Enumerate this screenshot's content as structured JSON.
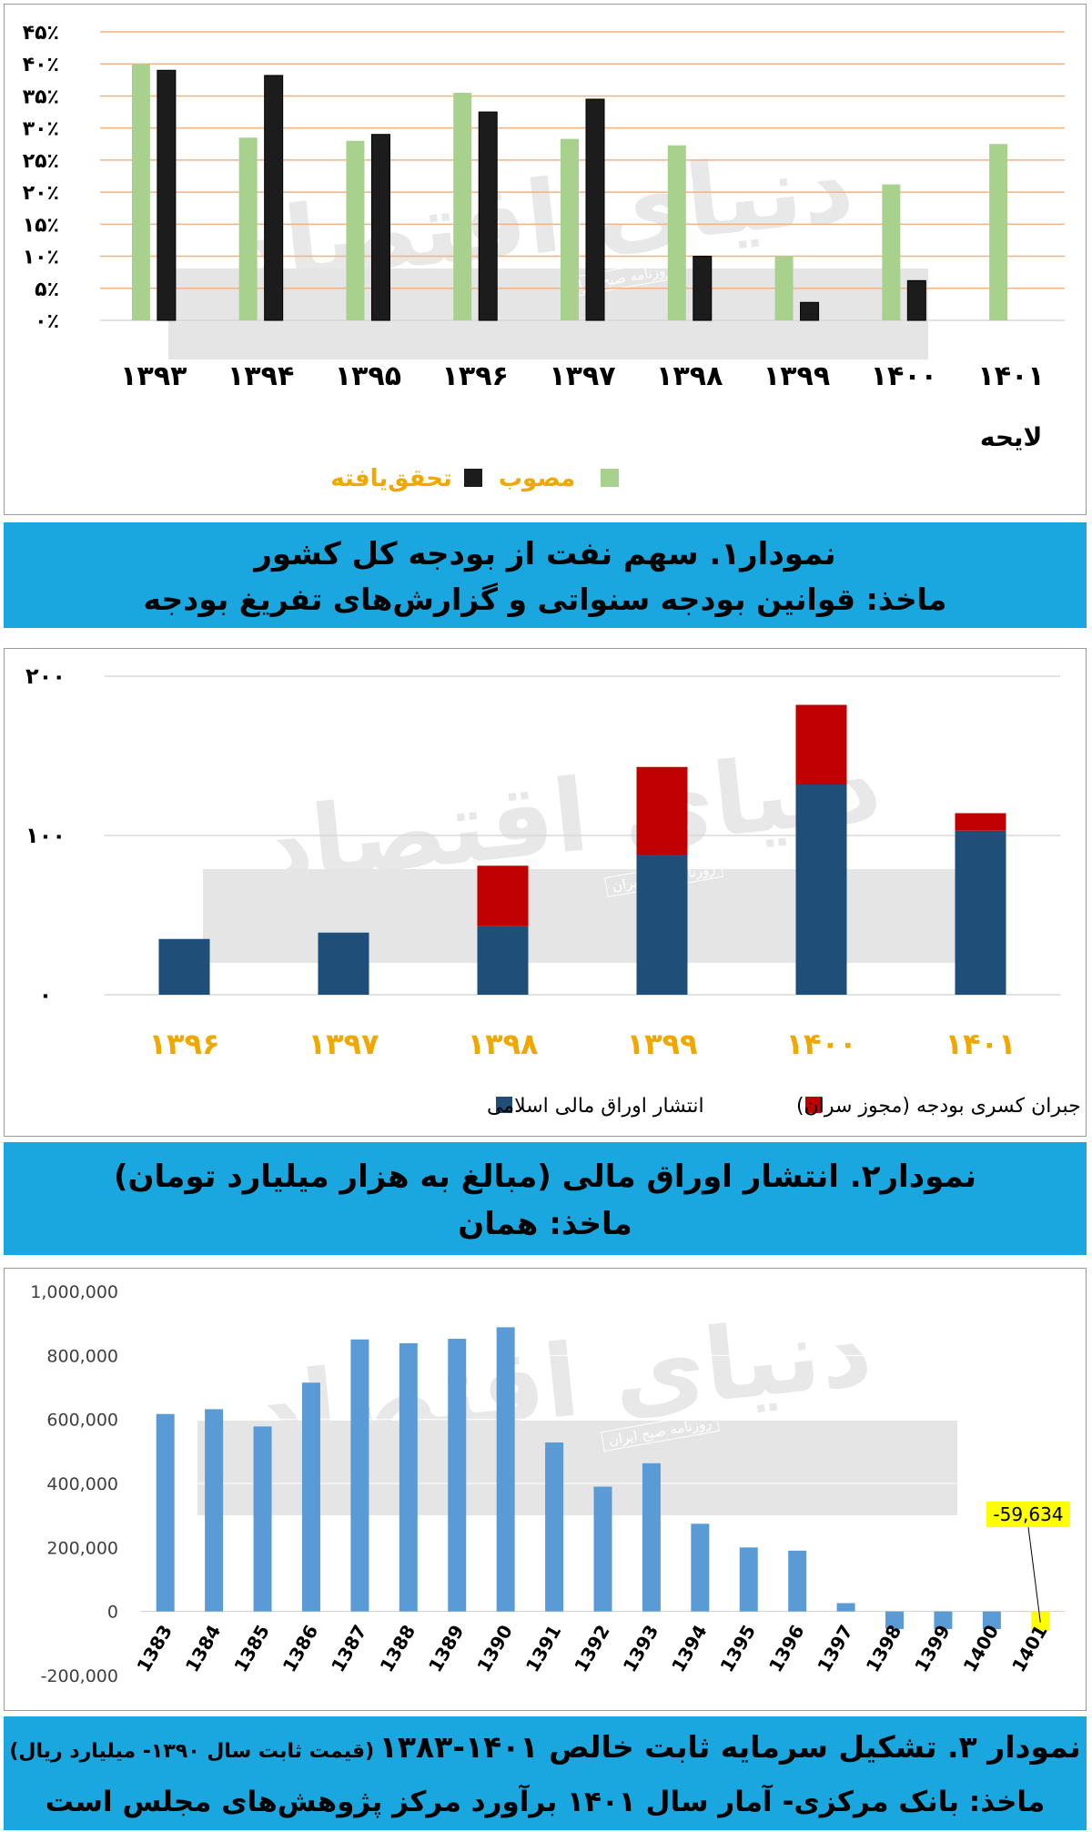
{
  "watermark": {
    "main": "دنیای اقتصاد",
    "small": "روزنامه صبح ایران"
  },
  "chart_data": [
    {
      "type": "bar",
      "categories": [
        "۱۳۹۳",
        "۱۳۹۴",
        "۱۳۹۵",
        "۱۳۹۶",
        "۱۳۹۷",
        "۱۳۹۸",
        "۱۳۹۹",
        "۱۴۰۰",
        "۱۴۰۱"
      ],
      "category_note": "لایحه",
      "ytick_labels": [
        "۴۵٪",
        "۴۰٪",
        "۳۵٪",
        "۳۰٪",
        "۲۵٪",
        "۲۰٪",
        "۱۵٪",
        "۱۰٪",
        "۵٪",
        "۰٪"
      ],
      "ylim": [
        0,
        45
      ],
      "series": [
        {
          "name": "مصوب",
          "color": "#a9d18e",
          "values": [
            40,
            28.5,
            28,
            35.5,
            28.3,
            27.3,
            10,
            21.2,
            27.5
          ]
        },
        {
          "name": "تحقق‌یافته",
          "color": "#1c1c1c",
          "values": [
            39,
            38.2,
            29,
            32.5,
            34.5,
            10,
            2.8,
            6.2,
            null
          ]
        }
      ],
      "legend_position": "bottom",
      "caption": [
        "نمودار۱. سهم نفت از بودجه کل کشور",
        "ماخذ: قوانین بودجه سنواتی و گزارش‌های تفریغ بودجه"
      ]
    },
    {
      "type": "bar",
      "stacked": true,
      "categories": [
        "۱۳۹۶",
        "۱۳۹۷",
        "۱۳۹۸",
        "۱۳۹۹",
        "۱۴۰۰",
        "۱۴۰۱"
      ],
      "ytick_labels": [
        "۲۰۰",
        "۱۰۰",
        "۰"
      ],
      "ylim": [
        0,
        200
      ],
      "series": [
        {
          "name": "انتشار اوراق مالی اسلامی",
          "color": "#1f4e79",
          "values": [
            35,
            39,
            43,
            88,
            132,
            103
          ]
        },
        {
          "name": "جبران کسری بودجه (مجوز سران)",
          "color": "#c00000",
          "values": [
            0,
            0,
            38,
            55,
            50,
            11
          ]
        }
      ],
      "legend_position": "bottom",
      "caption": [
        "نمودار۲. انتشار اوراق مالی (مبالغ به هزار میلیارد تومان)",
        "ماخذ: همان"
      ]
    },
    {
      "type": "bar",
      "categories": [
        "1383",
        "1384",
        "1385",
        "1386",
        "1387",
        "1388",
        "1389",
        "1390",
        "1391",
        "1392",
        "1393",
        "1394",
        "1395",
        "1396",
        "1397",
        "1398",
        "1399",
        "1400",
        "1401"
      ],
      "ytick_labels": [
        "1,000,000",
        "800,000",
        "600,000",
        "400,000",
        "200,000",
        "0",
        "-200,000"
      ],
      "ylim": [
        -200000,
        1000000
      ],
      "series": [
        {
          "color": "#5b9bd5",
          "values": [
            617000,
            632000,
            578000,
            715000,
            850000,
            838000,
            852000,
            888000,
            528000,
            390000,
            463000,
            274000,
            200000,
            190000,
            26000,
            -55000,
            -55000,
            -55000,
            -59634
          ]
        }
      ],
      "highlight": {
        "category": "1401",
        "label": "-59,634",
        "color": "#ffff00"
      },
      "caption": [
        "نمودار ۳. تشکیل سرمایه ثابت خالص ۱۴۰۱-۱۳۸۳",
        "(قیمت ثابت سال ۱۳۹۰- میلیارد ریال)",
        "ماخذ: بانک مرکزی- آمار سال ۱۴۰۱ برآورد مرکز پژوهش‌های مجلس است"
      ]
    }
  ]
}
